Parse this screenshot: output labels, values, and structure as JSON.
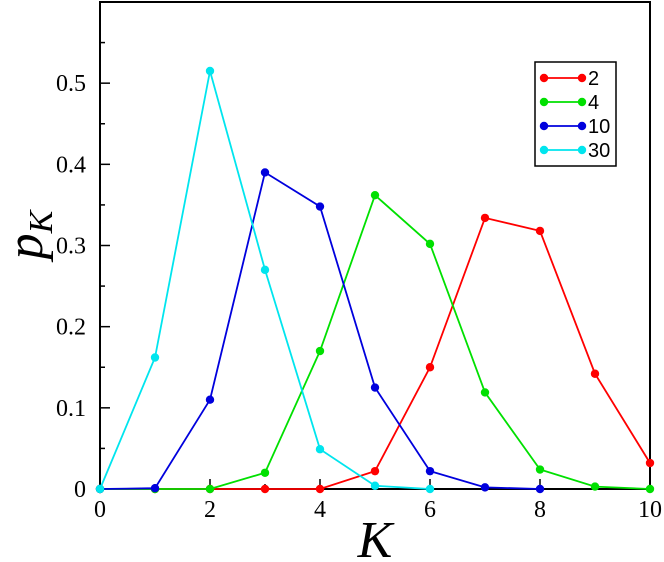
{
  "chart_data": {
    "type": "line",
    "xlabel": "K",
    "ylabel": "p",
    "ylabel_subscript": "K",
    "xlim": [
      0,
      10
    ],
    "ylim": [
      0,
      0.6
    ],
    "x_ticks": [
      "0",
      "2",
      "4",
      "6",
      "8",
      "10"
    ],
    "y_ticks": [
      "0",
      "0.1",
      "0.2",
      "0.3",
      "0.4",
      "0.5"
    ],
    "grid": false,
    "legend_position": "top-right",
    "series": [
      {
        "name": "2",
        "color": "#ff0000",
        "x": [
          0,
          1,
          2,
          3,
          4,
          5,
          6,
          7,
          8,
          9,
          10
        ],
        "y": [
          0,
          0,
          0,
          0,
          0,
          0.022,
          0.15,
          0.334,
          0.318,
          0.142,
          0.032
        ]
      },
      {
        "name": "4",
        "color": "#00e000",
        "x": [
          0,
          1,
          2,
          3,
          4,
          5,
          6,
          7,
          8,
          9,
          10
        ],
        "y": [
          0,
          0,
          0,
          0.02,
          0.17,
          0.362,
          0.302,
          0.119,
          0.024,
          0.003,
          0
        ]
      },
      {
        "name": "10",
        "color": "#0000dd",
        "x": [
          0,
          1,
          2,
          3,
          4,
          5,
          6,
          7,
          8
        ],
        "y": [
          0,
          0.001,
          0.11,
          0.39,
          0.348,
          0.125,
          0.022,
          0.002,
          0
        ]
      },
      {
        "name": "30",
        "color": "#00e5ee",
        "x": [
          0,
          1,
          2,
          3,
          4,
          5,
          6
        ],
        "y": [
          0,
          0.162,
          0.515,
          0.27,
          0.049,
          0.004,
          0
        ]
      }
    ]
  }
}
